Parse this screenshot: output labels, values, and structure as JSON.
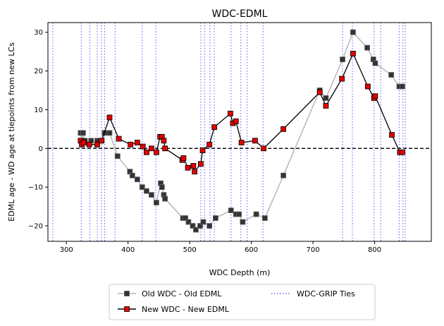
{
  "chart_data": {
    "type": "line",
    "title": "WDC-EDML",
    "xlabel": "WDC Depth (m)",
    "ylabel": "EDML age - WD age at tiepoints from new LCs",
    "xlim": [
      270,
      892
    ],
    "ylim": [
      -24,
      32.5
    ],
    "xticks": [
      300,
      400,
      500,
      600,
      700,
      800
    ],
    "yticks": [
      -20,
      -10,
      0,
      10,
      20,
      30
    ],
    "zero_line": {
      "y": 0,
      "style": "dashed",
      "color": "#000000"
    },
    "legend": {
      "placement": "bottom-center-outside",
      "columns": 2
    },
    "series": [
      {
        "name": "Old WDC - Old EDML",
        "color": "#b3b3b3",
        "marker": "square",
        "marker_color": "#333333",
        "x": [
          323,
          325,
          327,
          330,
          340,
          350,
          357,
          362,
          370,
          383,
          403,
          407,
          415,
          423,
          430,
          438,
          446,
          453,
          455,
          458,
          460,
          489,
          493,
          498,
          505,
          510,
          517,
          522,
          532,
          542,
          567,
          575,
          580,
          586,
          608,
          622,
          652,
          711,
          721,
          748,
          765,
          788,
          798,
          801,
          827,
          840,
          845
        ],
        "y": [
          4,
          2,
          4,
          2,
          2,
          2,
          2,
          4,
          4,
          -2,
          -6,
          -7,
          -8,
          -10,
          -11,
          -12,
          -14,
          -9,
          -10,
          -12,
          -13,
          -18,
          -18,
          -19,
          -20,
          -21,
          -20,
          -19,
          -20,
          -18,
          -16,
          -17,
          -17,
          -19,
          -17,
          -18,
          -7,
          15,
          13,
          23,
          30,
          26,
          23,
          22,
          19,
          16,
          16
        ]
      },
      {
        "name": "New WDC - New EDML",
        "color": "#000000",
        "marker": "square",
        "marker_color": "#e00000",
        "x": [
          323,
          325,
          328,
          337,
          350,
          357,
          370,
          385,
          404,
          415,
          424,
          430,
          438,
          446,
          452,
          455,
          458,
          460,
          488,
          490,
          497,
          506,
          508,
          518,
          521,
          532,
          540,
          566,
          570,
          575,
          584,
          606,
          620,
          652,
          711,
          721,
          747,
          765,
          789,
          799,
          801,
          828,
          841,
          845
        ],
        "y": [
          2,
          1,
          1.5,
          1,
          1,
          2,
          8,
          2.5,
          1,
          1.5,
          0.5,
          -1,
          0,
          -1,
          3,
          3,
          2,
          0,
          -3,
          -2.5,
          -5,
          -4.5,
          -6,
          -4,
          -0.5,
          1,
          5.5,
          9,
          6.5,
          7,
          1.5,
          2,
          0,
          5,
          14.5,
          11,
          18,
          24.5,
          16,
          13,
          13.5,
          3.5,
          -1,
          -1
        ]
      },
      {
        "name": "WDC-GRIP Ties",
        "color": "#5050ff",
        "style": "dotted",
        "x": [
          278,
          324,
          338,
          350,
          357,
          362,
          379,
          423,
          445,
          518,
          524,
          533,
          540,
          567,
          583,
          593,
          619,
          748,
          764,
          799,
          810,
          840,
          846,
          850
        ]
      }
    ]
  }
}
